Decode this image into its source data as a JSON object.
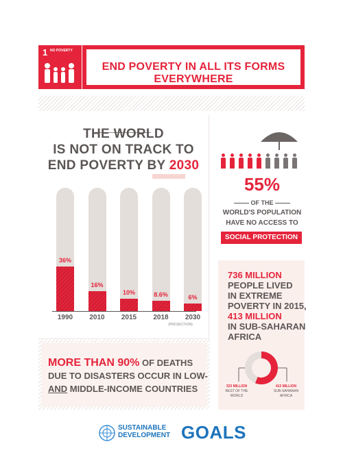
{
  "header": {
    "goal_number": "1",
    "goal_caption": "NO POVERTY",
    "title": "END POVERTY IN ALL ITS FORMS EVERYWHERE"
  },
  "track": {
    "line1": "THE WORLD",
    "line2": "IS NOT ON TRACK TO",
    "line3_prefix": "END POVERTY BY ",
    "line3_year": "2030"
  },
  "chart_data": {
    "type": "bar",
    "categories": [
      "1990",
      "2010",
      "2015",
      "2018",
      "2030"
    ],
    "values": [
      36,
      16,
      10,
      8.6,
      6
    ],
    "value_labels": [
      "36%",
      "16%",
      "10%",
      "8.6%",
      "6%"
    ],
    "projection_note": "(PROJECTION)",
    "ylim": [
      0,
      100
    ]
  },
  "social": {
    "percent": "55%",
    "line1": "OF THE",
    "line2": "WORLD'S POPULATION",
    "line3": "HAVE NO ACCESS TO",
    "highlight": "SOCIAL PROTECTION",
    "people_red": 5,
    "people_gray": 4
  },
  "extreme": {
    "line1": "736 MILLION",
    "line2": "PEOPLE LIVED",
    "line3": "IN EXTREME",
    "line4": "POVERTY IN 2015,",
    "line5": "413 MILLION",
    "line6": "IN SUB-SAHARAN",
    "line7": "AFRICA",
    "donut": {
      "rest_value": "323 MILLION",
      "rest_label1": "REST OF THE",
      "rest_label2": "WORLD",
      "ssa_value": "413 MILLION",
      "ssa_label1": "SUB-SAHARAN",
      "ssa_label2": "AFRICA",
      "ssa_fraction": 0.561
    }
  },
  "disasters": {
    "prefix": "MORE THAN 90%",
    "line1_rest": " OF DEATHS",
    "line2": "DUE TO DISASTERS OCCUR IN LOW-",
    "line3_and": "AND",
    "line3_rest": " MIDDLE-INCOME COUNTRIES"
  },
  "footer": {
    "sustainable": "SUSTAINABLE",
    "development": "DEVELOPMENT",
    "goals": "GOALS"
  },
  "colors": {
    "accent": "#e5243b",
    "text": "#5b5655",
    "bar_bg": "#e3deda",
    "panel": "#fbefec"
  }
}
